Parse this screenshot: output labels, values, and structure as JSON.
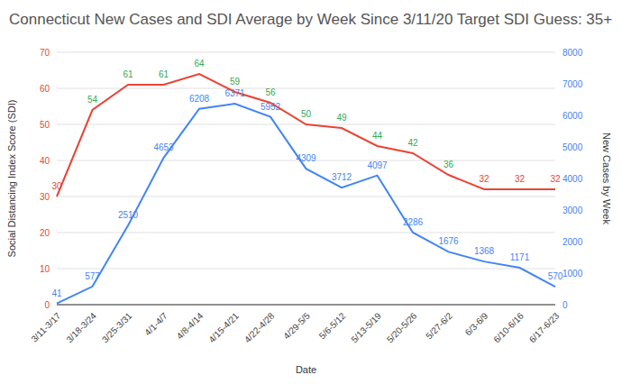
{
  "chart_data": {
    "type": "line",
    "title": "Connecticut New Cases and SDI Average by Week Since 3/11/20 Target SDI Guess: 35+",
    "x_label": "Date",
    "y_label": "Social Distancing Index Score (SDI)",
    "y2_label": "New Cases by Week",
    "categories": [
      "3/11-3/17",
      "3/18-3/24",
      "3/25-3/31",
      "4/1-4/7",
      "4/8-4/14",
      "4/15-4/21",
      "4/22-4/28",
      "4/29-5/5",
      "5/6-5/12",
      "5/13-5/19",
      "5/20-5/26",
      "5/27-6/2",
      "6/3-6/9",
      "6/10-6/16",
      "6/17-6/23"
    ],
    "series": [
      {
        "name": "SDI",
        "color": "#ea4335",
        "colors": [
          "#ea4335",
          "#34a853",
          "#34a853",
          "#34a853",
          "#34a853",
          "#34a853",
          "#34a853",
          "#34a853",
          "#34a853",
          "#34a853",
          "#34a853",
          "#34a853",
          "#ea4335",
          "#ea4335",
          "#ea4335"
        ],
        "values": [
          30,
          54,
          61,
          61,
          64,
          59,
          56,
          50,
          49,
          44,
          42,
          36,
          32,
          32,
          32
        ]
      },
      {
        "name": "New Cases",
        "color": "#4285f4",
        "axis": "y2",
        "values": [
          41,
          577,
          2510,
          4653,
          6208,
          6371,
          5952,
          4309,
          3712,
          4097,
          2286,
          1676,
          1368,
          1171,
          570
        ]
      }
    ],
    "ylim": [
      0,
      70
    ],
    "yticks": [
      0,
      10,
      20,
      30,
      40,
      50,
      60,
      70
    ],
    "y2lim": [
      0,
      8000
    ],
    "y2ticks": [
      0,
      1000,
      2000,
      3000,
      4000,
      5000,
      6000,
      7000,
      8000
    ],
    "grid": true,
    "data_labels": true,
    "legend": "none"
  }
}
